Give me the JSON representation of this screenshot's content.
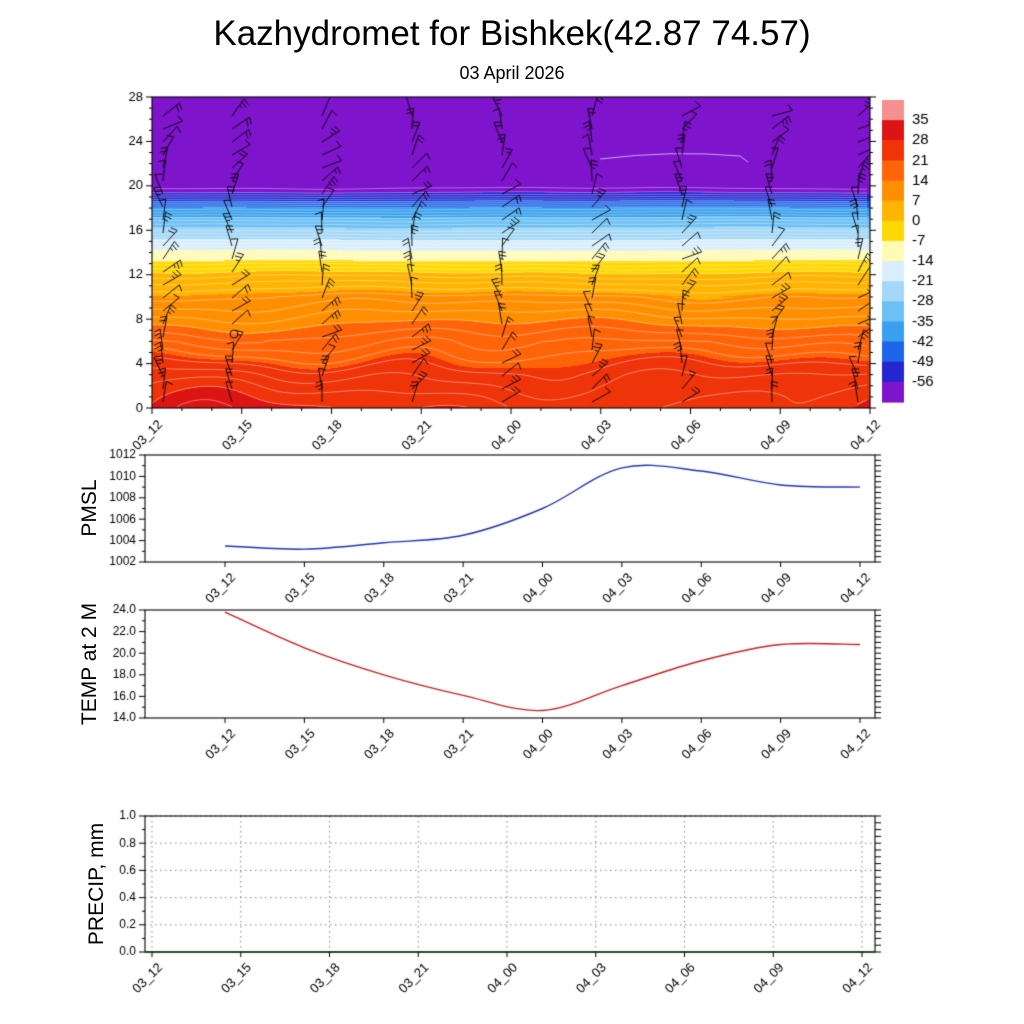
{
  "header": {
    "title": "Kazhydromet for Bishkek(42.87 74.57)",
    "subtitle": "03 April 2026"
  },
  "time_labels": [
    "03_12",
    "03_15",
    "03_18",
    "03_21",
    "04_00",
    "04_03",
    "04_06",
    "04_09",
    "04_12"
  ],
  "chart_data": [
    {
      "type": "heatmap",
      "name": "upper-air-temperature-cross-section",
      "x": [
        "03_12",
        "03_15",
        "03_18",
        "03_21",
        "04_00",
        "04_03",
        "04_06",
        "04_09",
        "04_12"
      ],
      "y_ticks": [
        0,
        4,
        8,
        12,
        16,
        20,
        24,
        28
      ],
      "ylim": [
        0,
        28
      ],
      "overlay": "wind-barbs at every time column, calm circle near 03_15 level 7",
      "profile": [
        [
          0,
          27
        ],
        [
          1,
          26
        ],
        [
          2,
          24.7
        ],
        [
          3,
          23.2
        ],
        [
          4,
          21.2
        ],
        [
          5,
          19.2
        ],
        [
          6,
          17.2
        ],
        [
          7,
          15
        ],
        [
          8,
          12.8
        ],
        [
          9,
          10.6
        ],
        [
          10,
          8.2
        ],
        [
          11,
          5
        ],
        [
          12,
          1.2
        ],
        [
          13,
          -4.5
        ],
        [
          14,
          -12.5
        ],
        [
          15,
          -19.5
        ],
        [
          16,
          -26.5
        ],
        [
          17,
          -33
        ],
        [
          18,
          -41
        ],
        [
          18.8,
          -50
        ],
        [
          19.4,
          -56
        ],
        [
          19.9,
          -58.6
        ],
        [
          22,
          -59.2
        ],
        [
          28,
          -59.6
        ]
      ],
      "colorbar": {
        "tick_labels": [
          "35",
          "28",
          "21",
          "14",
          "7",
          "0",
          "-7",
          "-14",
          "-21",
          "-28",
          "-35",
          "-42",
          "-49",
          "-56"
        ],
        "colors_top_to_bottom": [
          "#f49090",
          "#dc1414",
          "#ee3408",
          "#ff6408",
          "#ff8f00",
          "#ffb400",
          "#ffd800",
          "#fffbb4",
          "#d8eefc",
          "#a4d8f8",
          "#6cc0f4",
          "#38a0ee",
          "#1e64e6",
          "#2426d0",
          "#7e14cc"
        ]
      }
    },
    {
      "type": "line",
      "name": "pmsl",
      "axis_label": "PMSL",
      "color": "#2233bb",
      "x": [
        "03_12",
        "03_15",
        "03_18",
        "03_21",
        "04_00",
        "04_03",
        "04_06",
        "04_09",
        "04_12"
      ],
      "values": [
        1003.5,
        1003.2,
        1003.8,
        1004.5,
        1007.0,
        1010.8,
        1010.5,
        1009.2,
        1009.0
      ],
      "ylim": [
        1002,
        1012
      ],
      "y_tick_labels": [
        "1002",
        "1004",
        "1006",
        "1008",
        "1010",
        "1012"
      ]
    },
    {
      "type": "line",
      "name": "temp-2m",
      "axis_label": "TEMP at 2 M",
      "color": "#cc2020",
      "x": [
        "03_12",
        "03_15",
        "03_18",
        "03_21",
        "04_00",
        "04_03",
        "04_06",
        "04_09",
        "04_12"
      ],
      "values": [
        23.8,
        20.5,
        18.0,
        16.1,
        14.7,
        17.0,
        19.3,
        20.8,
        20.8
      ],
      "ylim": [
        14,
        24
      ],
      "y_tick_labels": [
        "14.0",
        "16.0",
        "18.0",
        "20.0",
        "22.0",
        "24.0"
      ]
    },
    {
      "type": "line",
      "name": "precip",
      "axis_label": "PRECIP, mm",
      "color": "#143814",
      "x": [
        "03_12",
        "03_15",
        "03_18",
        "03_21",
        "04_00",
        "04_03",
        "04_06",
        "04_09",
        "04_12"
      ],
      "values": [
        0,
        0,
        0,
        0,
        0,
        0,
        0,
        0,
        0
      ],
      "ylim": [
        0,
        1
      ],
      "y_tick_labels": [
        "0.0",
        "0.2",
        "0.4",
        "0.6",
        "0.8",
        "1.0"
      ],
      "grid": "dotted"
    }
  ]
}
